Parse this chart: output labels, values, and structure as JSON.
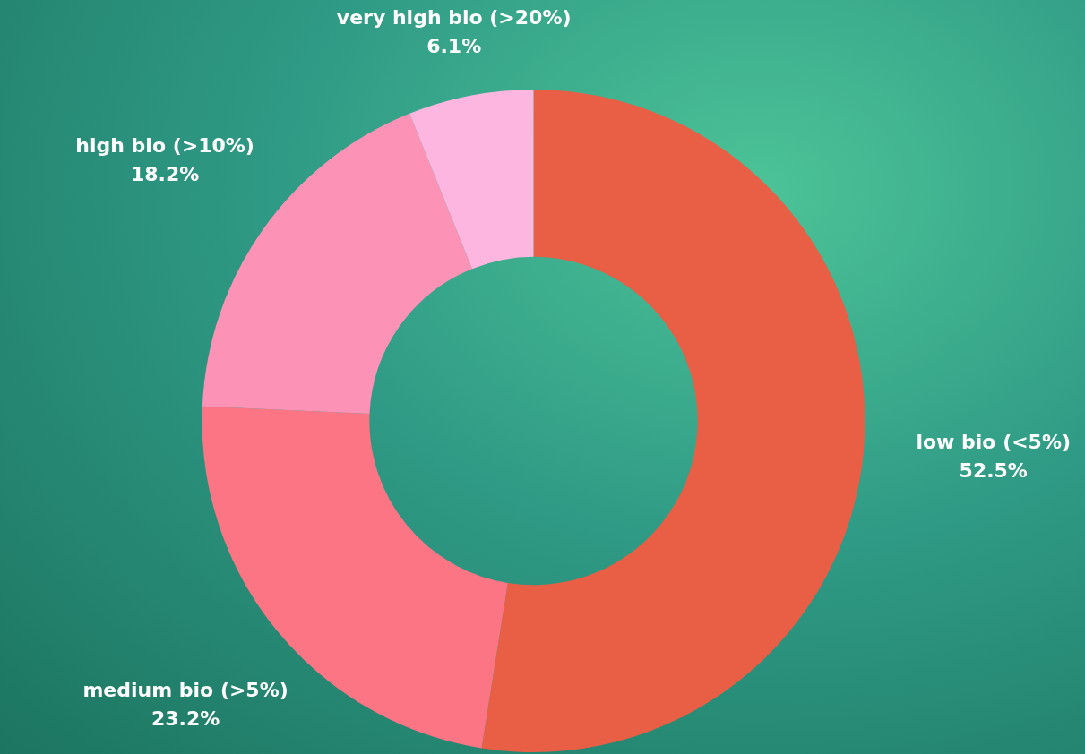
{
  "chart_data": {
    "type": "donut",
    "categories": [
      "low bio (<5%)",
      "medium bio (>5%)",
      "high bio (>10%)",
      "very high bio (>20%)"
    ],
    "values": [
      52.5,
      23.2,
      18.2,
      6.1
    ],
    "colors": [
      "#e95f45",
      "#fb7585",
      "#fc92b5",
      "#fdb6e0"
    ],
    "value_labels": [
      "52.5%",
      "23.2%",
      "18.2%",
      "6.1%"
    ],
    "legend": false
  }
}
